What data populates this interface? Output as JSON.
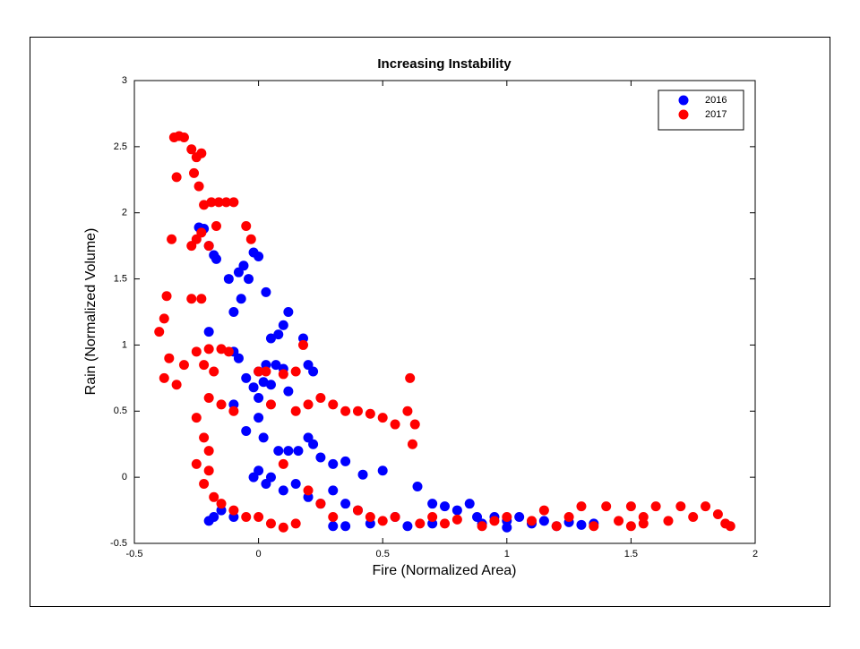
{
  "chart_data": {
    "type": "scatter",
    "title": "Increasing Instability",
    "x_label": "Fire (Normalized Area)",
    "y_label": "Rain (Normalized Volume)",
    "xlim": [
      -0.5,
      2
    ],
    "ylim": [
      -0.5,
      3
    ],
    "xticks": [
      -0.5,
      0,
      0.5,
      1,
      1.5,
      2
    ],
    "yticks": [
      -0.5,
      0,
      0.5,
      1,
      1.5,
      2,
      2.5,
      3
    ],
    "legend": "northeast",
    "series": [
      {
        "name": "2016",
        "color": "#0000ff",
        "x": [
          -0.24,
          -0.22,
          -0.2,
          -0.18,
          -0.17,
          -0.12,
          -0.08,
          -0.06,
          -0.04,
          -0.02,
          0,
          -0.07,
          -0.1,
          0.03,
          0.1,
          0.12,
          0.08,
          0.05,
          0.18,
          -0.2,
          -0.1,
          -0.08,
          -0.05,
          0,
          0.03,
          0.07,
          0.1,
          0.2,
          0.22,
          0.02,
          0.05,
          -0.02,
          0,
          -0.1,
          0.12,
          0,
          -0.05,
          0.02,
          0.08,
          0.12,
          0.16,
          0.2,
          0.22,
          0.25,
          0.3,
          0.35,
          0.42,
          0.5,
          0.64,
          0,
          -0.02,
          0.03,
          0.05,
          0.1,
          0.15,
          0.2,
          0.25,
          0.3,
          0.35,
          0.4,
          -0.2,
          -0.18,
          -0.15,
          -0.1,
          0.3,
          0.35,
          0.45,
          0.55,
          0.7,
          0.75,
          0.8,
          0.85,
          0.88,
          0.9,
          0.95,
          1,
          1.05,
          1.1,
          1.15,
          1.2,
          1.25,
          1.3,
          1.35,
          0.6,
          0.7,
          1
        ],
        "values": [
          1.89,
          1.88,
          1.75,
          1.68,
          1.65,
          1.5,
          1.55,
          1.6,
          1.5,
          1.7,
          1.67,
          1.35,
          1.25,
          1.4,
          1.15,
          1.25,
          1.08,
          1.05,
          1.05,
          1.1,
          0.95,
          0.9,
          0.75,
          0.8,
          0.85,
          0.85,
          0.82,
          0.85,
          0.8,
          0.72,
          0.7,
          0.68,
          0.6,
          0.55,
          0.65,
          0.45,
          0.35,
          0.3,
          0.2,
          0.2,
          0.2,
          0.3,
          0.25,
          0.15,
          0.1,
          0.12,
          0.02,
          0.05,
          -0.07,
          0.05,
          0,
          -0.05,
          0,
          -0.1,
          -0.05,
          -0.15,
          -0.2,
          -0.1,
          -0.2,
          -0.25,
          -0.33,
          -0.3,
          -0.25,
          -0.3,
          -0.37,
          -0.37,
          -0.35,
          -0.3,
          -0.2,
          -0.22,
          -0.25,
          -0.2,
          -0.3,
          -0.35,
          -0.3,
          -0.33,
          -0.3,
          -0.35,
          -0.33,
          -0.37,
          -0.34,
          -0.36,
          -0.35,
          -0.37,
          -0.35,
          -0.38
        ]
      },
      {
        "name": "2017",
        "color": "#ff0000",
        "x": [
          -0.4,
          -0.38,
          -0.37,
          -0.35,
          -0.33,
          -0.34,
          -0.32,
          -0.3,
          -0.27,
          -0.25,
          -0.23,
          -0.26,
          -0.24,
          -0.22,
          -0.19,
          -0.16,
          -0.13,
          -0.1,
          -0.17,
          -0.05,
          -0.03,
          -0.27,
          -0.25,
          -0.23,
          -0.2,
          -0.27,
          -0.23,
          -0.38,
          -0.36,
          -0.33,
          -0.3,
          -0.25,
          -0.2,
          -0.15,
          -0.12,
          -0.22,
          -0.18,
          -0.2,
          -0.15,
          -0.1,
          -0.25,
          -0.22,
          -0.2,
          -0.25,
          -0.2,
          -0.22,
          -0.18,
          -0.15,
          -0.1,
          0,
          0.03,
          0.1,
          0.15,
          0.18,
          0.05,
          0.15,
          0.2,
          0.25,
          0.3,
          0.35,
          0.4,
          0.45,
          0.5,
          0.55,
          0.6,
          0.61,
          0.62,
          0.63,
          0.1,
          0.2,
          0.25,
          0.3,
          0.4,
          0.45,
          0.5,
          0.55,
          0.65,
          0.7,
          0.75,
          0.8,
          0.9,
          0.95,
          1,
          1.1,
          1.15,
          1.2,
          1.25,
          1.3,
          1.35,
          1.4,
          1.45,
          1.5,
          1.55,
          1.6,
          1.65,
          1.7,
          1.75,
          1.8,
          1.85,
          1.88,
          1.9,
          1.5,
          1.55,
          0,
          -0.05,
          0.05,
          0.1,
          0.15
        ],
        "values": [
          1.1,
          1.2,
          1.37,
          1.8,
          2.27,
          2.57,
          2.58,
          2.57,
          2.48,
          2.42,
          2.45,
          2.3,
          2.2,
          2.06,
          2.08,
          2.08,
          2.08,
          2.08,
          1.9,
          1.9,
          1.8,
          1.75,
          1.8,
          1.85,
          1.75,
          1.35,
          1.35,
          0.75,
          0.9,
          0.7,
          0.85,
          0.95,
          0.97,
          0.97,
          0.95,
          0.85,
          0.8,
          0.6,
          0.55,
          0.5,
          0.45,
          0.3,
          0.2,
          0.1,
          0.05,
          -0.05,
          -0.15,
          -0.2,
          -0.25,
          0.8,
          0.8,
          0.78,
          0.8,
          1,
          0.55,
          0.5,
          0.55,
          0.6,
          0.55,
          0.5,
          0.5,
          0.48,
          0.45,
          0.4,
          0.5,
          0.75,
          0.25,
          0.4,
          0.1,
          -0.1,
          -0.2,
          -0.3,
          -0.25,
          -0.3,
          -0.33,
          -0.3,
          -0.35,
          -0.3,
          -0.35,
          -0.32,
          -0.37,
          -0.33,
          -0.3,
          -0.33,
          -0.25,
          -0.37,
          -0.3,
          -0.22,
          -0.37,
          -0.22,
          -0.33,
          -0.22,
          -0.3,
          -0.22,
          -0.33,
          -0.22,
          -0.3,
          -0.22,
          -0.28,
          -0.35,
          -0.37,
          -0.37,
          -0.35,
          -0.3,
          -0.3,
          -0.35,
          -0.38,
          -0.35
        ]
      }
    ]
  }
}
